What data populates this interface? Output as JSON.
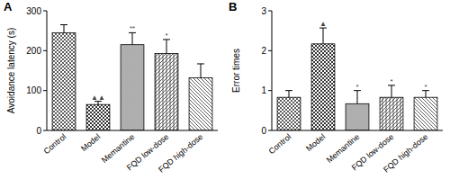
{
  "chart_data": [
    {
      "type": "bar",
      "panel_label": "A",
      "y_label": "Avoidance latency (s)",
      "categories": [
        "Control",
        "Model",
        "Memantine",
        "FQD low-dose",
        "FQD high-dose"
      ],
      "values": [
        245,
        65,
        215,
        193,
        132
      ],
      "errors": [
        20,
        8,
        30,
        35,
        35
      ],
      "annotations": [
        null,
        "▲▲",
        "**",
        "*",
        null
      ],
      "colors": [
        "#333333",
        "#333333",
        "#333333",
        "#333333",
        "#333333"
      ],
      "ylim": [
        0,
        300
      ],
      "yticks": [
        0,
        100,
        200,
        300
      ],
      "grid": false
    },
    {
      "type": "bar",
      "panel_label": "B",
      "y_label": "Error times",
      "categories": [
        "Control",
        "Model",
        "Memantine",
        "FQD low-dose",
        "FQD high-dose"
      ],
      "values": [
        0.83,
        2.17,
        0.67,
        0.83,
        0.83
      ],
      "errors": [
        0.17,
        0.4,
        0.33,
        0.3,
        0.17
      ],
      "annotations": [
        null,
        "▲",
        "*",
        "*",
        "*"
      ],
      "colors": [
        "#333333",
        "#333333",
        "#333333",
        "#333333",
        "#333333"
      ],
      "ylim": [
        0,
        3
      ],
      "yticks": [
        0,
        1,
        2,
        3
      ],
      "grid": false
    }
  ]
}
